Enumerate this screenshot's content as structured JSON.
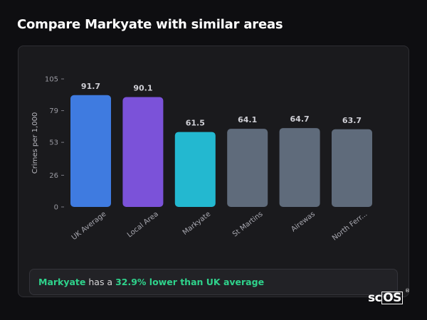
{
  "page": {
    "title": "Compare Markyate with similar areas"
  },
  "summary": {
    "area": "Markyate",
    "middle": " has a ",
    "highlight": "32.9% lower than UK average"
  },
  "logo": {
    "text_sc": "sc",
    "text_os": "OS",
    "mark": "®"
  },
  "colors": {
    "uk_average": "#3f7be0",
    "local_area": "#7b52d9",
    "markyate": "#23b8d0",
    "others": "#5f6b7b",
    "accent": "#2fd38c"
  },
  "chart_data": {
    "type": "bar",
    "categories": [
      "UK Average",
      "Local Area",
      "Markyate",
      "St Martins",
      "Airewas",
      "North Ferr..."
    ],
    "values": [
      91.7,
      90.1,
      61.5,
      64.1,
      64.7,
      63.7
    ],
    "value_labels": [
      "91.7",
      "90.1",
      "61.5",
      "64.1",
      "64.7",
      "63.7"
    ],
    "bar_colors": [
      "#3f7be0",
      "#7b52d9",
      "#23b8d0",
      "#5f6b7b",
      "#5f6b7b",
      "#5f6b7b"
    ],
    "ylabel": "Crimes per 1,000",
    "xlabel": "",
    "title": "",
    "ylim": [
      0,
      105
    ],
    "yticks": [
      0,
      26,
      53,
      79,
      105
    ],
    "ytick_labels": [
      "0",
      "26",
      "53",
      "79",
      "105"
    ],
    "grid": false,
    "legend": "none"
  }
}
